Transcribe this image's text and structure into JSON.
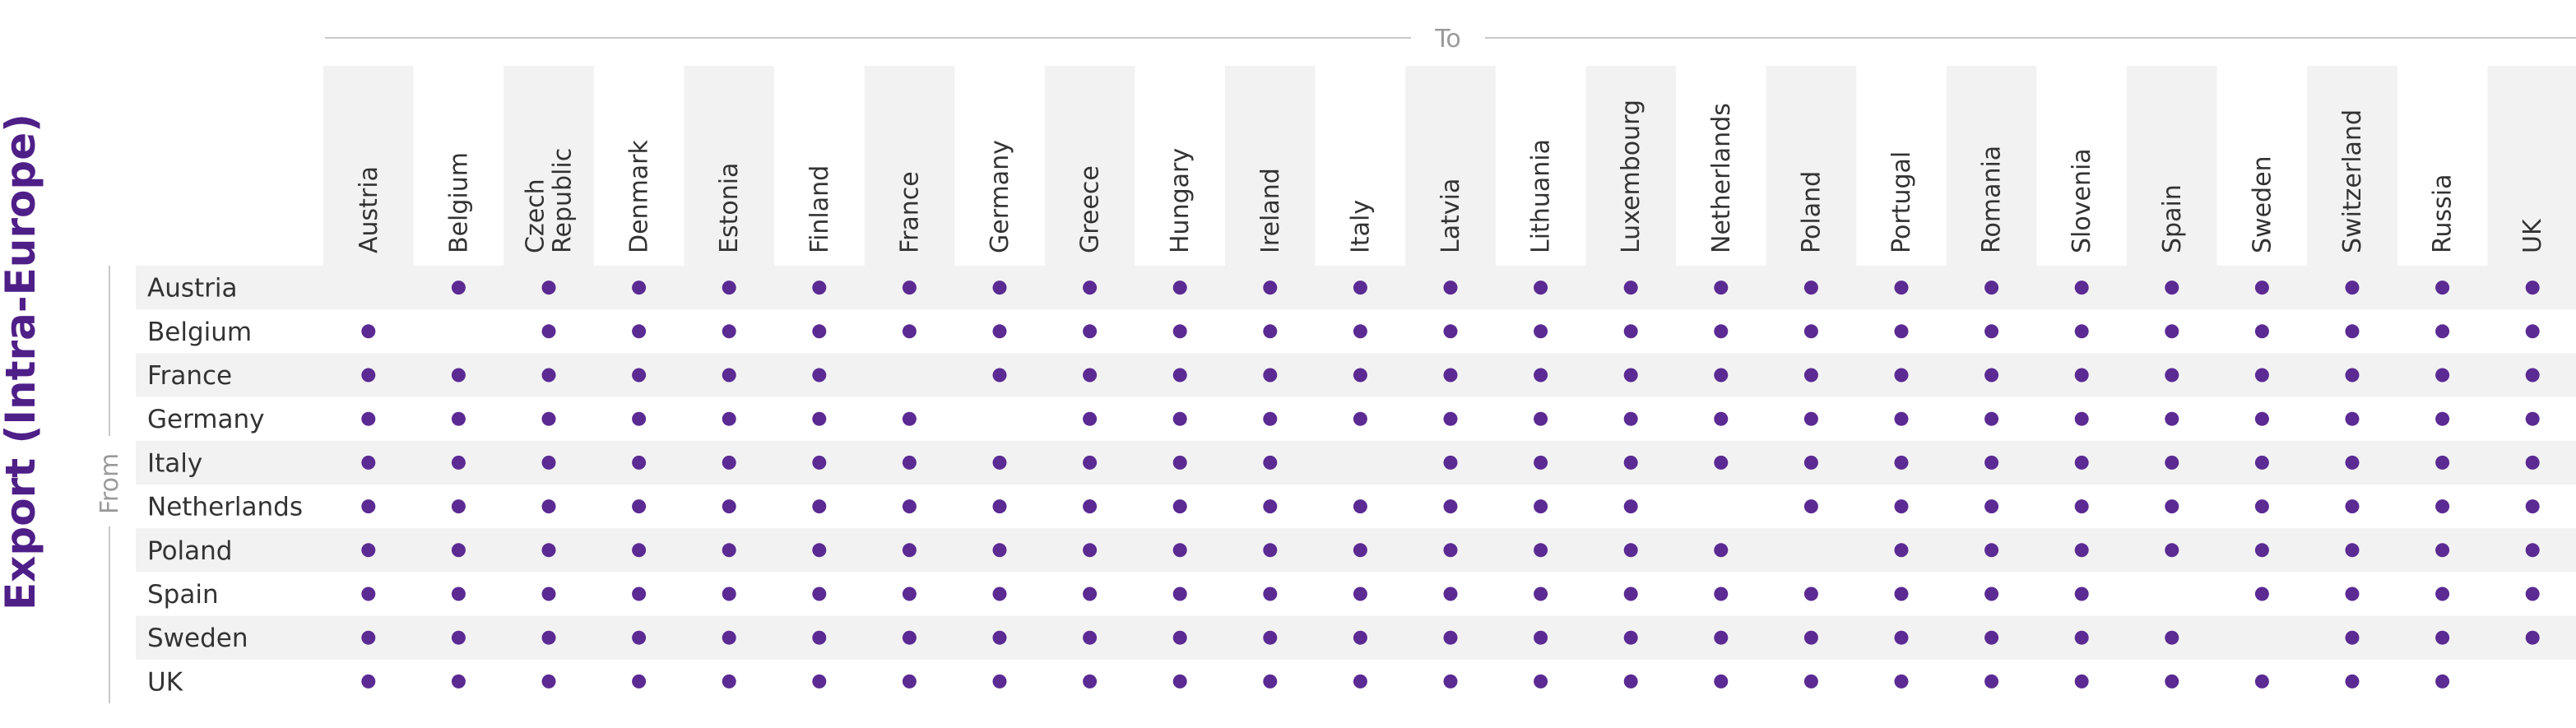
{
  "title": "Export (Intra-Europe)",
  "to_label": "To",
  "from_label": "From",
  "colors": {
    "title": "#4f1f88",
    "dot": "#5b2a93",
    "band": "#f2f2f2",
    "axis_text": "#9a9a9a",
    "text": "#333333",
    "axis_line": "#c8c8c8"
  },
  "chart_data": {
    "type": "table",
    "columns": [
      [
        "Austria"
      ],
      [
        "Belgium"
      ],
      [
        "Czech",
        "Republic"
      ],
      [
        "Denmark"
      ],
      [
        "Estonia"
      ],
      [
        "Finland"
      ],
      [
        "France"
      ],
      [
        "Germany"
      ],
      [
        "Greece"
      ],
      [
        "Hungary"
      ],
      [
        "Ireland"
      ],
      [
        "Italy"
      ],
      [
        "Latvia"
      ],
      [
        "Lithuania"
      ],
      [
        "Luxembourg"
      ],
      [
        "Netherlands"
      ],
      [
        "Poland"
      ],
      [
        "Portugal"
      ],
      [
        "Romania"
      ],
      [
        "Slovenia"
      ],
      [
        "Spain"
      ],
      [
        "Sweden"
      ],
      [
        "Switzerland"
      ],
      [
        "Russia"
      ],
      [
        "UK"
      ]
    ],
    "rows": [
      "Austria",
      "Belgium",
      "France",
      "Germany",
      "Italy",
      "Netherlands",
      "Poland",
      "Spain",
      "Sweden",
      "UK"
    ],
    "matrix": [
      [
        0,
        1,
        1,
        1,
        1,
        1,
        1,
        1,
        1,
        1,
        1,
        1,
        1,
        1,
        1,
        1,
        1,
        1,
        1,
        1,
        1,
        1,
        1,
        1,
        1
      ],
      [
        1,
        0,
        1,
        1,
        1,
        1,
        1,
        1,
        1,
        1,
        1,
        1,
        1,
        1,
        1,
        1,
        1,
        1,
        1,
        1,
        1,
        1,
        1,
        1,
        1
      ],
      [
        1,
        1,
        1,
        1,
        1,
        1,
        0,
        1,
        1,
        1,
        1,
        1,
        1,
        1,
        1,
        1,
        1,
        1,
        1,
        1,
        1,
        1,
        1,
        1,
        1
      ],
      [
        1,
        1,
        1,
        1,
        1,
        1,
        1,
        0,
        1,
        1,
        1,
        1,
        1,
        1,
        1,
        1,
        1,
        1,
        1,
        1,
        1,
        1,
        1,
        1,
        1
      ],
      [
        1,
        1,
        1,
        1,
        1,
        1,
        1,
        1,
        1,
        1,
        1,
        0,
        1,
        1,
        1,
        1,
        1,
        1,
        1,
        1,
        1,
        1,
        1,
        1,
        1
      ],
      [
        1,
        1,
        1,
        1,
        1,
        1,
        1,
        1,
        1,
        1,
        1,
        1,
        1,
        1,
        1,
        0,
        1,
        1,
        1,
        1,
        1,
        1,
        1,
        1,
        1
      ],
      [
        1,
        1,
        1,
        1,
        1,
        1,
        1,
        1,
        1,
        1,
        1,
        1,
        1,
        1,
        1,
        1,
        0,
        1,
        1,
        1,
        1,
        1,
        1,
        1,
        1
      ],
      [
        1,
        1,
        1,
        1,
        1,
        1,
        1,
        1,
        1,
        1,
        1,
        1,
        1,
        1,
        1,
        1,
        1,
        1,
        1,
        1,
        0,
        1,
        1,
        1,
        1
      ],
      [
        1,
        1,
        1,
        1,
        1,
        1,
        1,
        1,
        1,
        1,
        1,
        1,
        1,
        1,
        1,
        1,
        1,
        1,
        1,
        1,
        1,
        0,
        1,
        1,
        1
      ],
      [
        1,
        1,
        1,
        1,
        1,
        1,
        1,
        1,
        1,
        1,
        1,
        1,
        1,
        1,
        1,
        1,
        1,
        1,
        1,
        1,
        1,
        1,
        1,
        1,
        0
      ]
    ]
  }
}
